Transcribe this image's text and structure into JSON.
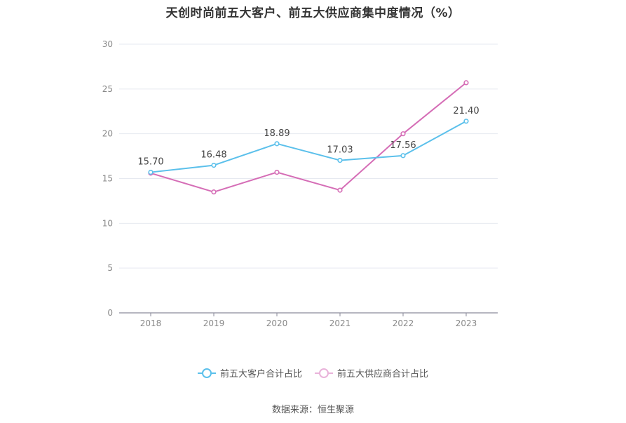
{
  "chart_data": {
    "type": "line",
    "title": "天创时尚前五大客户、前五大供应商集中度情况（%）",
    "categories": [
      "2018",
      "2019",
      "2020",
      "2021",
      "2022",
      "2023"
    ],
    "ylim": [
      0,
      30
    ],
    "yticks": [
      0,
      5,
      10,
      15,
      20,
      25,
      30
    ],
    "grid": true,
    "legend_position": "bottom",
    "series": [
      {
        "name": "前五大客户合计占比",
        "color": "#5bc0eb",
        "values": [
          15.7,
          16.48,
          18.89,
          17.03,
          17.56,
          21.4
        ],
        "labels": [
          "15.70",
          "16.48",
          "18.89",
          "17.03",
          "17.56",
          "21.40"
        ]
      },
      {
        "name": "前五大供应商合计占比",
        "color": "#d56db6",
        "values": [
          15.6,
          13.5,
          15.7,
          13.7,
          20.0,
          25.7
        ]
      }
    ]
  },
  "source": "数据来源：恒生聚源"
}
